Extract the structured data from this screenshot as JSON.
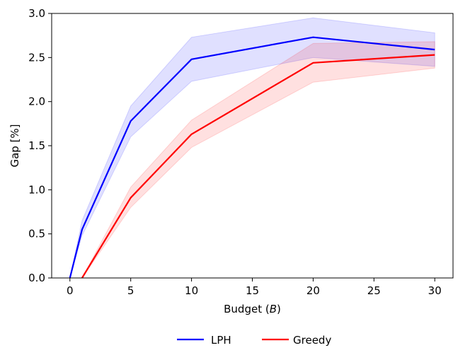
{
  "chart_data": {
    "type": "line",
    "xlabel": "Budget (",
    "xlabel_var": "B",
    "xlabel_close": ")",
    "ylabel": "Gap [%]",
    "xlim": [
      -1.5,
      31.5
    ],
    "ylim": [
      0.0,
      3.0
    ],
    "xticks": [
      0,
      5,
      10,
      15,
      20,
      25,
      30
    ],
    "yticks": [
      "0.0",
      "0.5",
      "1.0",
      "1.5",
      "2.0",
      "2.5",
      "3.0"
    ],
    "grid": false,
    "legend_position": "bottom-center, outside plot",
    "series": [
      {
        "name": "LPH",
        "color": "#0000ff",
        "band_color": "#0000ff",
        "x": [
          0,
          1,
          5,
          10,
          20,
          30
        ],
        "values": [
          0.0,
          0.55,
          1.78,
          2.48,
          2.73,
          2.59
        ],
        "lower": [
          0.0,
          0.48,
          1.6,
          2.23,
          2.5,
          2.4
        ],
        "upper": [
          0.0,
          0.65,
          1.95,
          2.73,
          2.95,
          2.78
        ]
      },
      {
        "name": "Greedy",
        "color": "#ff0000",
        "band_color": "#ff0000",
        "x": [
          1,
          5,
          10,
          20,
          30
        ],
        "values": [
          0.0,
          0.91,
          1.63,
          2.44,
          2.53
        ],
        "lower": [
          0.0,
          0.8,
          1.48,
          2.22,
          2.38
        ],
        "upper": [
          0.0,
          1.03,
          1.79,
          2.66,
          2.68
        ]
      }
    ]
  }
}
